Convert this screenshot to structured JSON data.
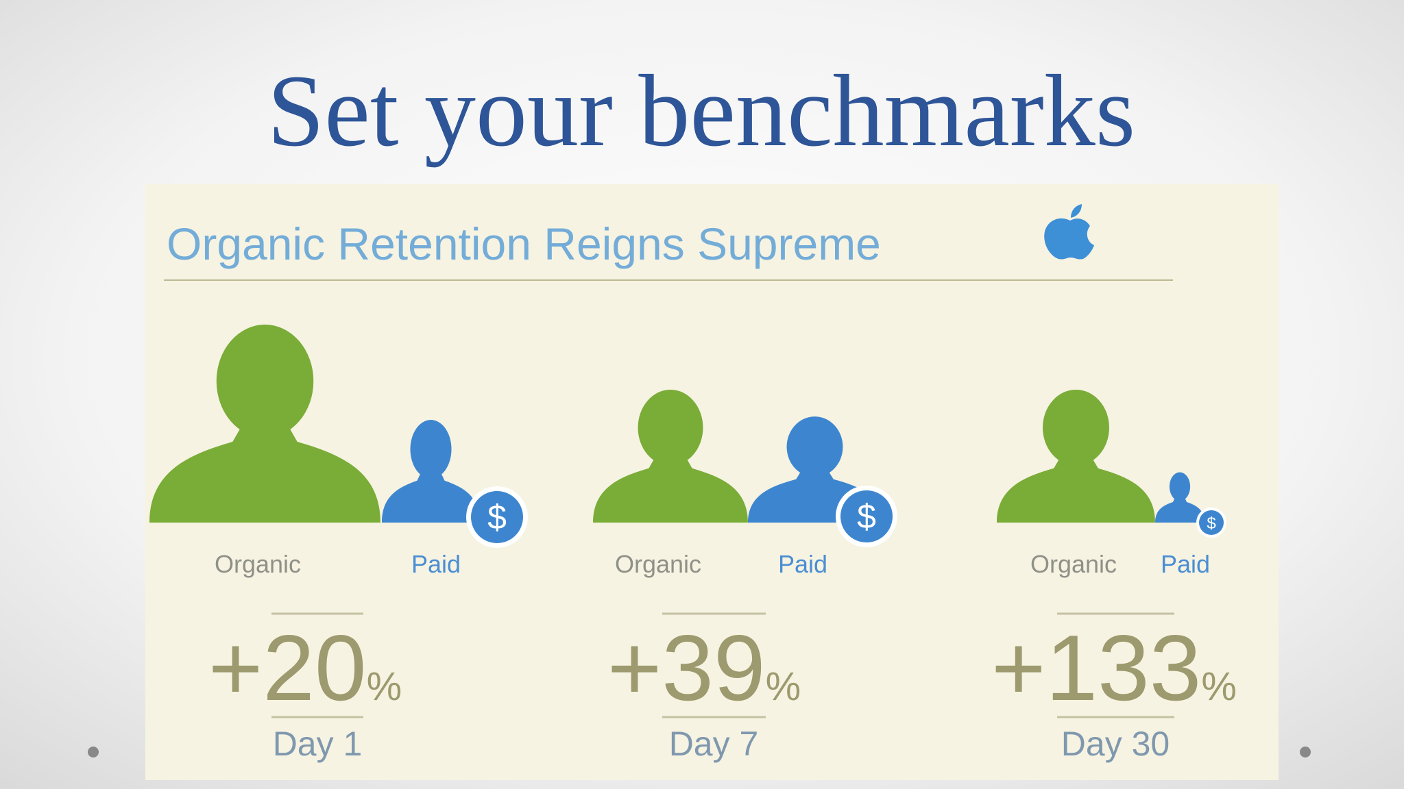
{
  "header": {
    "title": "Set your benchmarks"
  },
  "infographic": {
    "title": "Organic Retention Reigns Supreme",
    "groups": [
      {
        "organic_label": "Organic",
        "paid_label": "Paid",
        "value": "+20",
        "unit": "%",
        "day": "Day 1"
      },
      {
        "organic_label": "Organic",
        "paid_label": "Paid",
        "value": "+39",
        "unit": "%",
        "day": "Day 7"
      },
      {
        "organic_label": "Organic",
        "paid_label": "Paid",
        "value": "+133",
        "unit": "%",
        "day": "Day 30"
      }
    ]
  }
}
